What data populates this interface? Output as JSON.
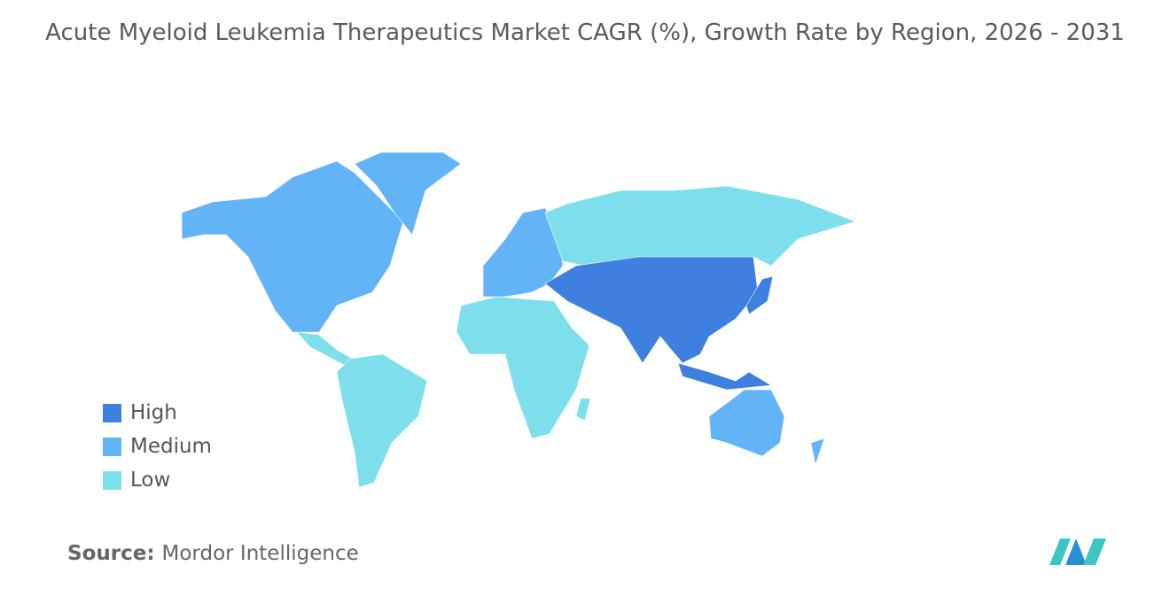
{
  "title": "Acute Myeloid Leukemia Therapeutics Market CAGR (%), Growth Rate by Region, 2026 - 2031",
  "legend": [
    {
      "label": "High",
      "color": "#3e80df"
    },
    {
      "label": "Medium",
      "color": "#63b4f7"
    },
    {
      "label": "Low",
      "color": "#7ddfeb"
    }
  ],
  "source": {
    "label": "Source:",
    "text": "Mordor Intelligence"
  }
}
